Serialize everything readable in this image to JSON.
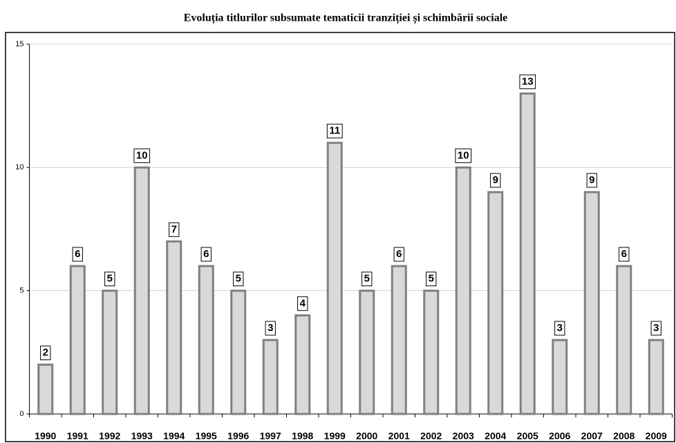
{
  "chart_data": {
    "type": "bar",
    "title": "Evoluția titlurilor subsumate tematicii tranziției și schimbării sociale",
    "categories": [
      "1990",
      "1991",
      "1992",
      "1993",
      "1994",
      "1995",
      "1996",
      "1997",
      "1998",
      "1999",
      "2000",
      "2001",
      "2002",
      "2003",
      "2004",
      "2005",
      "2006",
      "2007",
      "2008",
      "2009"
    ],
    "values": [
      2,
      6,
      5,
      10,
      7,
      6,
      5,
      3,
      4,
      11,
      5,
      6,
      5,
      10,
      9,
      13,
      3,
      9,
      6,
      3
    ],
    "color": "#d9d9d9",
    "ylim": [
      0,
      15
    ],
    "yticks": [
      0,
      5,
      10,
      15
    ],
    "grid": true
  }
}
